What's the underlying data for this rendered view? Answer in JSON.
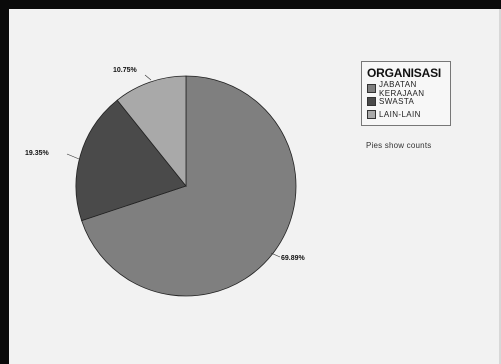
{
  "chart_data": {
    "type": "pie",
    "title": "ORGANISASI",
    "categories": [
      "JABATAN KERAJAAN",
      "SWASTA",
      "LAIN-LAIN"
    ],
    "values": [
      69.89,
      19.35,
      10.75
    ],
    "labels": [
      "69.89%",
      "19.35%",
      "10.75%"
    ],
    "colors": [
      "#7f7f7f",
      "#4a4a4a",
      "#a9a9a9"
    ],
    "legend_position": "top-right",
    "note": "Pies show counts"
  }
}
